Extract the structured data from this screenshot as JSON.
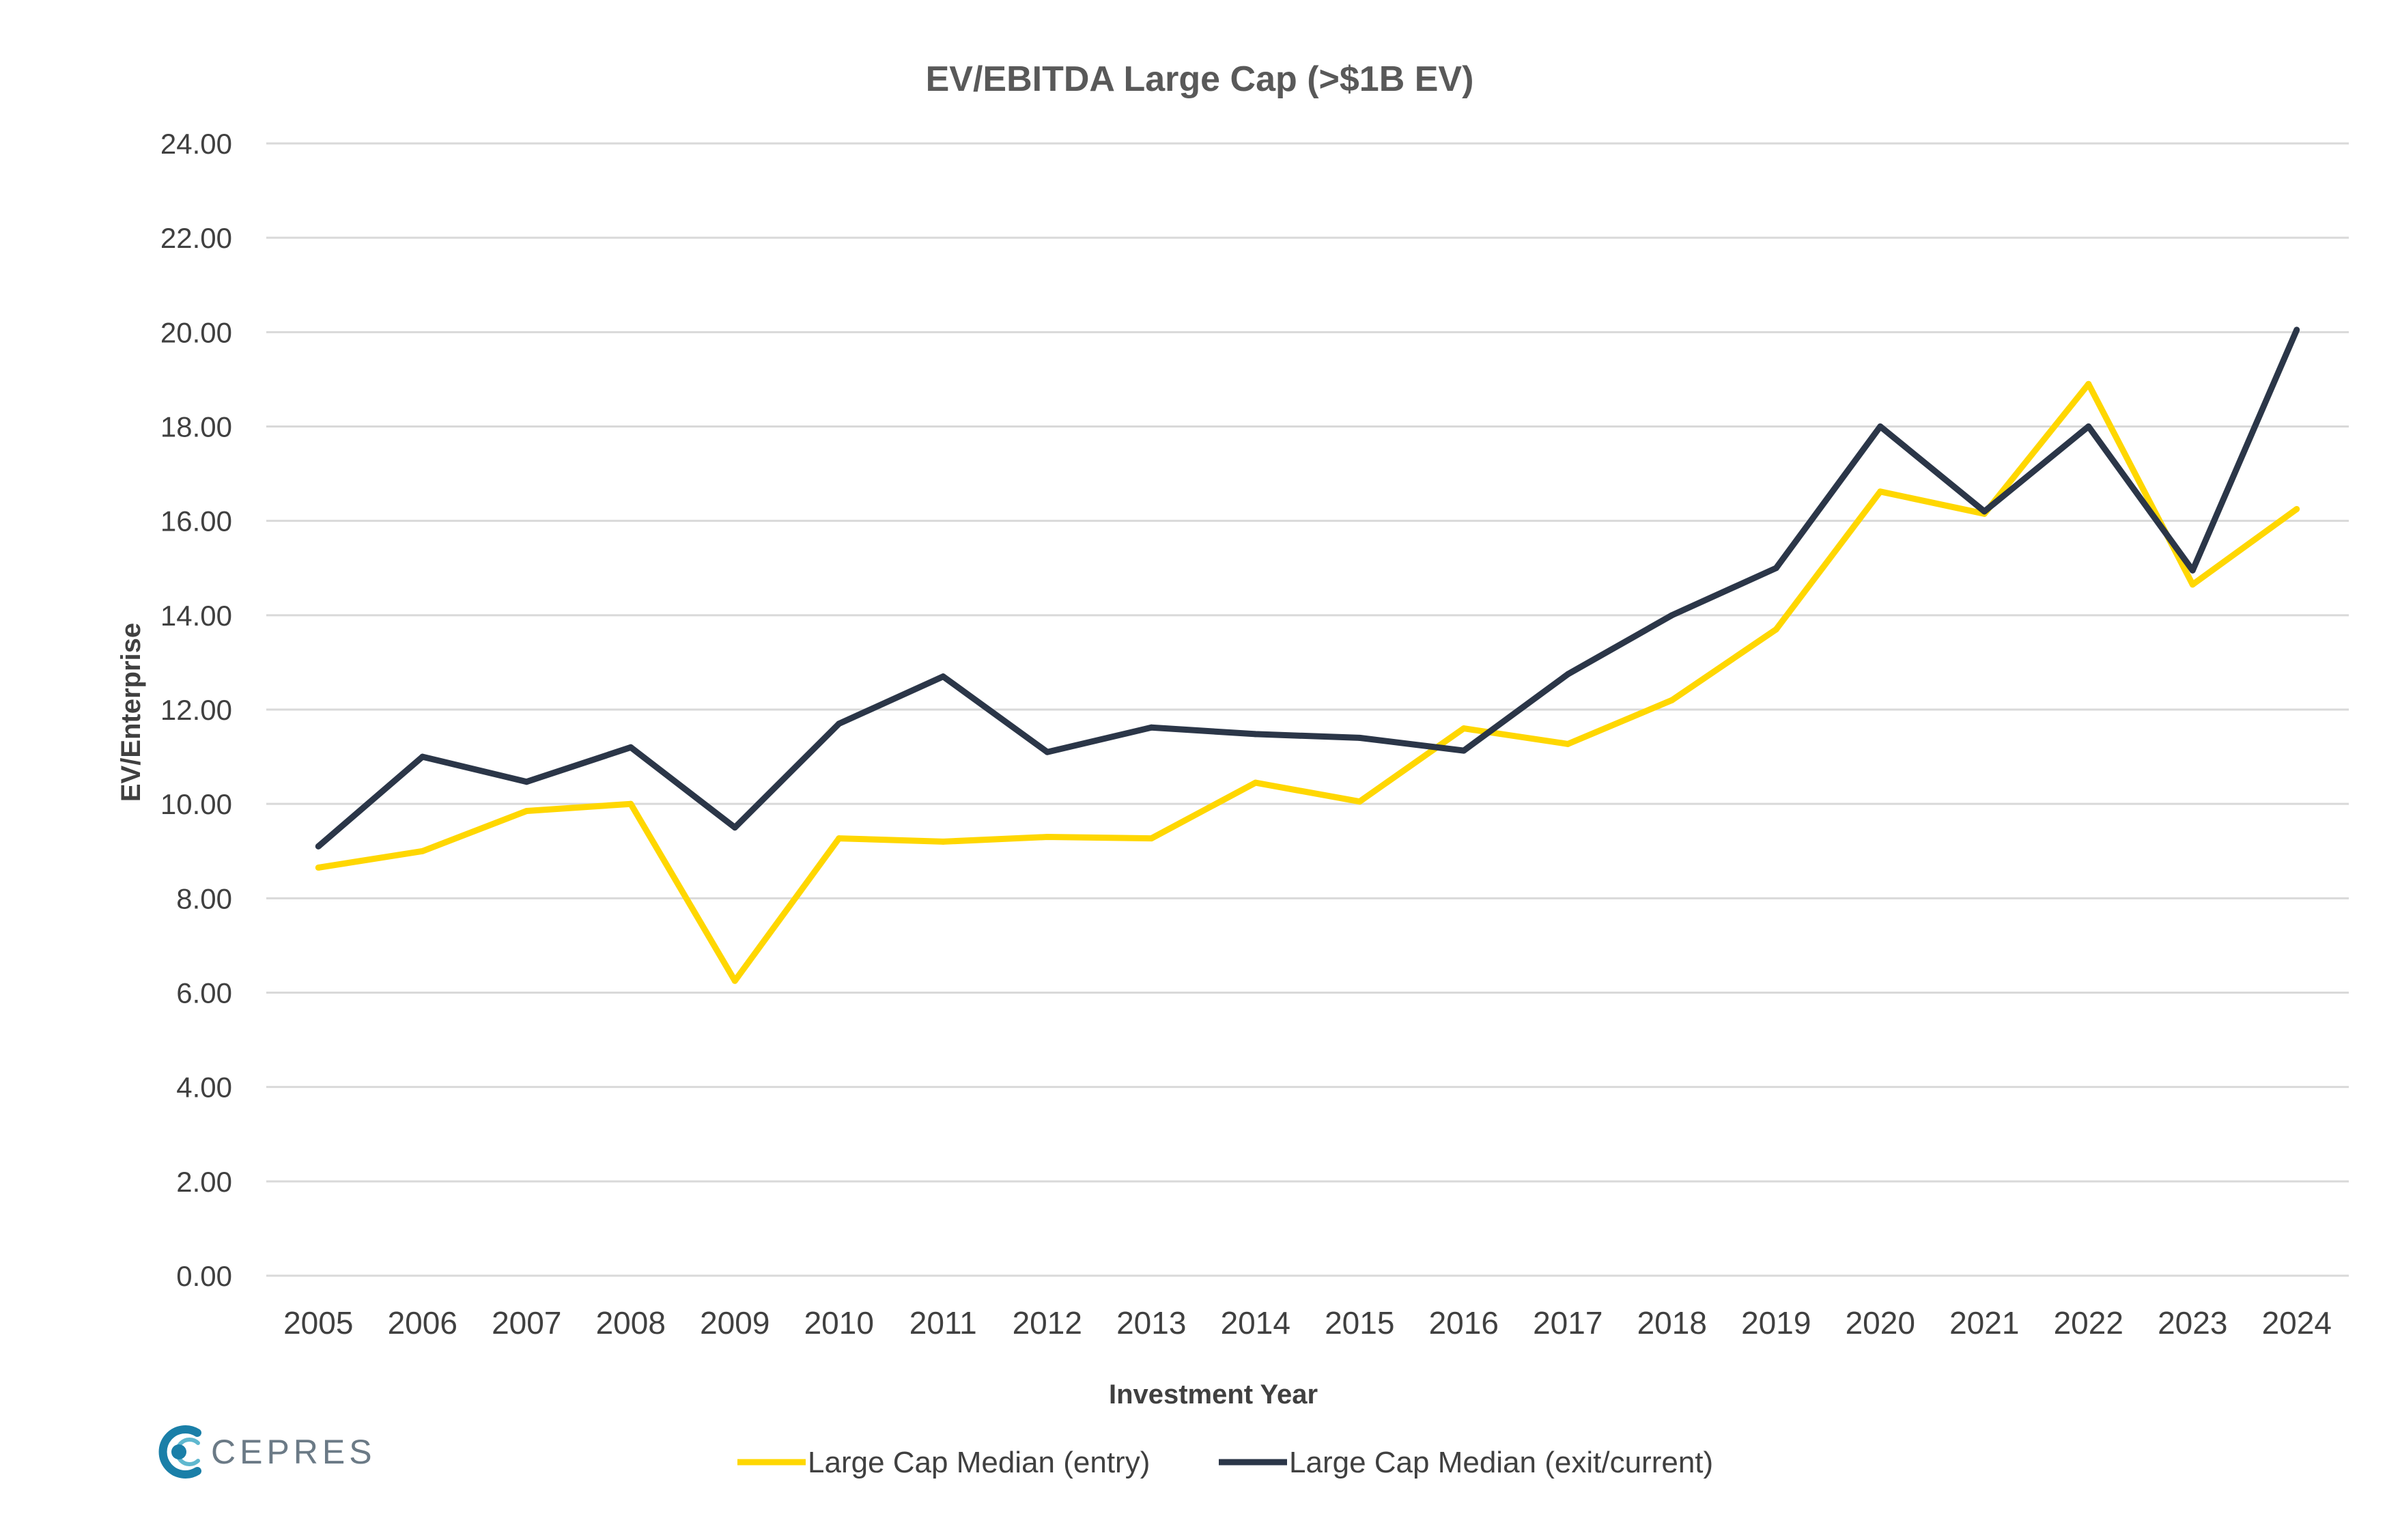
{
  "chart_data": {
    "type": "line",
    "title": "EV/EBITDA Large Cap (>$1B EV)",
    "xlabel": "Investment Year",
    "ylabel": "EV/Enterprise",
    "ylim": [
      0,
      24
    ],
    "y_ticks": [
      "0.00",
      "2.00",
      "4.00",
      "6.00",
      "8.00",
      "10.00",
      "12.00",
      "14.00",
      "16.00",
      "18.00",
      "20.00",
      "22.00",
      "24.00"
    ],
    "grid": "horizontal",
    "legend_position": "bottom",
    "categories": [
      "2005",
      "2006",
      "2007",
      "2008",
      "2009",
      "2010",
      "2011",
      "2012",
      "2013",
      "2014",
      "2015",
      "2016",
      "2017",
      "2018",
      "2019",
      "2020",
      "2021",
      "2022",
      "2023",
      "2024"
    ],
    "series": [
      {
        "name": "Large Cap Median (entry)",
        "color": "#FFD700",
        "values": [
          8.65,
          9.0,
          9.85,
          10.0,
          6.25,
          9.27,
          9.2,
          9.3,
          9.27,
          10.45,
          10.05,
          11.6,
          11.27,
          12.2,
          13.7,
          16.62,
          16.15,
          18.9,
          14.65,
          16.25
        ]
      },
      {
        "name": "Large Cap Median (exit/current)",
        "color": "#2B3648",
        "values": [
          9.1,
          11.0,
          10.47,
          11.2,
          9.5,
          11.7,
          12.7,
          11.1,
          11.62,
          11.48,
          11.4,
          11.13,
          12.75,
          14.0,
          15.0,
          18.0,
          16.2,
          18.0,
          14.95,
          20.05
        ]
      }
    ]
  },
  "logo": {
    "text": "CEPRES",
    "color": "#1a7fa8"
  }
}
